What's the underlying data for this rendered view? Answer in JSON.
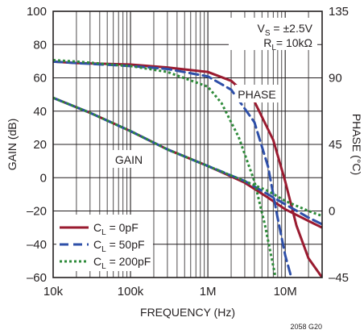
{
  "chart_data": {
    "type": "line",
    "xlabel": "FREQUENCY (Hz)",
    "ylabel_left": "GAIN (dB)",
    "ylabel_right": "PHASE (°C)",
    "x_scale": "log",
    "xlim": [
      10000,
      30000000
    ],
    "ylim_left": [
      -60,
      100
    ],
    "ylim_right": [
      -45,
      135
    ],
    "x_ticks": [
      {
        "value": 10000,
        "label": "10k"
      },
      {
        "value": 100000,
        "label": "100k"
      },
      {
        "value": 1000000,
        "label": "1M"
      },
      {
        "value": 10000000,
        "label": "10M"
      }
    ],
    "y_ticks_left": [
      {
        "value": 100,
        "label": "100"
      },
      {
        "value": 80,
        "label": "80"
      },
      {
        "value": 60,
        "label": "60"
      },
      {
        "value": 40,
        "label": "40"
      },
      {
        "value": 20,
        "label": "20"
      },
      {
        "value": 0,
        "label": "0"
      },
      {
        "value": -20,
        "label": "–20"
      },
      {
        "value": -40,
        "label": "–40"
      },
      {
        "value": -60,
        "label": "–60"
      }
    ],
    "y_ticks_right": [
      {
        "value": 135,
        "label": "135"
      },
      {
        "value": 90,
        "label": "90"
      },
      {
        "value": 45,
        "label": "45"
      },
      {
        "value": 0,
        "label": "0"
      },
      {
        "value": -45,
        "label": "–45"
      }
    ],
    "grid": true,
    "conditions": {
      "vs_label": "V",
      "vs_sub": "S",
      "vs_value": " = ±2.5V",
      "rl_label": "R",
      "rl_sub": "L",
      "rl_value": "= 10kΩ"
    },
    "annotations": {
      "phase": "PHASE",
      "gain": "GAIN",
      "figure_code": "2058 G20"
    },
    "legend": {
      "placement": "bottom-left",
      "entries": [
        {
          "prefix": "C",
          "sub": "L",
          "value": " = 0pF",
          "series": 0
        },
        {
          "prefix": "C",
          "sub": "L",
          "value": " = 50pF",
          "series": 1
        },
        {
          "prefix": "C",
          "sub": "L",
          "value": " = 200pF",
          "series": 2
        }
      ]
    },
    "series": [
      {
        "color": "#9a1b30",
        "dash": "solid",
        "gain": [
          [
            10000,
            48
          ],
          [
            30000,
            39
          ],
          [
            100000,
            28
          ],
          [
            300000,
            17
          ],
          [
            1000000,
            7
          ],
          [
            3000000,
            -3
          ],
          [
            6000000,
            -12
          ],
          [
            10000000,
            -19
          ],
          [
            20000000,
            -26
          ],
          [
            30000000,
            -30
          ]
        ],
        "phase": [
          [
            10000,
            101
          ],
          [
            20000,
            100
          ],
          [
            100000,
            99
          ],
          [
            300000,
            97
          ],
          [
            1000000,
            94
          ],
          [
            2000000,
            88
          ],
          [
            4000000,
            74
          ],
          [
            7000000,
            48
          ],
          [
            10000000,
            20
          ],
          [
            14000000,
            -10
          ],
          [
            20000000,
            -32
          ],
          [
            30000000,
            -45
          ]
        ]
      },
      {
        "color": "#2e4fa8",
        "dash": "dash",
        "gain": [
          [
            10000,
            48
          ],
          [
            30000,
            39
          ],
          [
            100000,
            28
          ],
          [
            300000,
            17
          ],
          [
            1000000,
            7
          ],
          [
            3000000,
            -2
          ],
          [
            6000000,
            -10
          ],
          [
            10000000,
            -16
          ],
          [
            20000000,
            -24
          ],
          [
            30000000,
            -28
          ]
        ],
        "phase": [
          [
            10000,
            101
          ],
          [
            20000,
            100
          ],
          [
            100000,
            98
          ],
          [
            300000,
            96
          ],
          [
            1000000,
            91
          ],
          [
            2000000,
            82
          ],
          [
            4000000,
            60
          ],
          [
            6000000,
            30
          ],
          [
            8000000,
            -5
          ],
          [
            10000000,
            -30
          ],
          [
            12000000,
            -45
          ]
        ]
      },
      {
        "color": "#2e8b3a",
        "dash": "dot",
        "gain": [
          [
            10000,
            48
          ],
          [
            30000,
            39
          ],
          [
            100000,
            28
          ],
          [
            300000,
            17
          ],
          [
            1000000,
            7
          ],
          [
            3000000,
            -2
          ],
          [
            6000000,
            -8
          ],
          [
            10000000,
            -14
          ],
          [
            20000000,
            -20
          ],
          [
            30000000,
            -23
          ]
        ],
        "phase": [
          [
            10000,
            102
          ],
          [
            20000,
            101
          ],
          [
            100000,
            98
          ],
          [
            300000,
            94
          ],
          [
            1000000,
            84
          ],
          [
            1500000,
            73
          ],
          [
            2500000,
            50
          ],
          [
            4000000,
            20
          ],
          [
            5500000,
            -10
          ],
          [
            7500000,
            -45
          ]
        ]
      }
    ]
  }
}
